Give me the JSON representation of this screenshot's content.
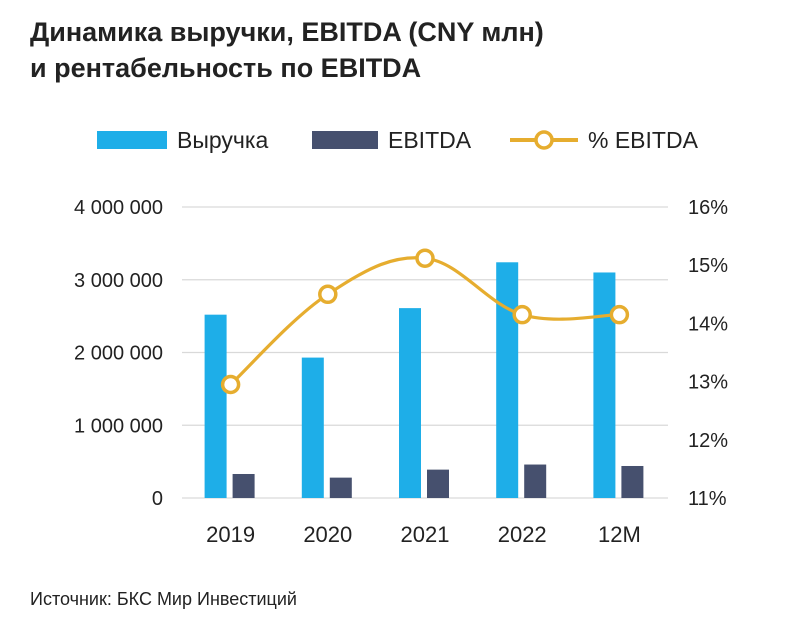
{
  "title_line1": "Динамика выручки, EBITDA (CNY млн)",
  "title_line2": "и рентабельность по EBITDA",
  "source": "Источник: БКС Мир Инвестиций",
  "colors": {
    "revenue": "#1eaee8",
    "ebitda": "#46506e",
    "margin": "#e6ad2f",
    "grid": "#d9d9d9"
  },
  "chart_data": {
    "type": "bar",
    "categories": [
      "2019",
      "2020",
      "2021",
      "2022",
      "12M"
    ],
    "series": [
      {
        "name": "Выручка",
        "type": "bar",
        "axis": "left",
        "values": [
          2520000,
          1930000,
          2610000,
          3240000,
          3100000
        ]
      },
      {
        "name": "EBITDA",
        "type": "bar",
        "axis": "left",
        "values": [
          330000,
          280000,
          390000,
          460000,
          440000
        ]
      },
      {
        "name": "% EBITDA",
        "type": "line",
        "axis": "right",
        "values": [
          12.95,
          14.5,
          15.12,
          14.15,
          14.15
        ]
      }
    ],
    "y_left": {
      "ticks": [
        "0",
        "1 000 000",
        "2 000 000",
        "3 000 000",
        "4 000 000"
      ],
      "range": [
        0,
        4000000
      ]
    },
    "y_right": {
      "ticks": [
        "11%",
        "12%",
        "13%",
        "14%",
        "15%",
        "16%"
      ],
      "range": [
        11,
        16
      ]
    },
    "legend_position": "top",
    "grid": true
  }
}
